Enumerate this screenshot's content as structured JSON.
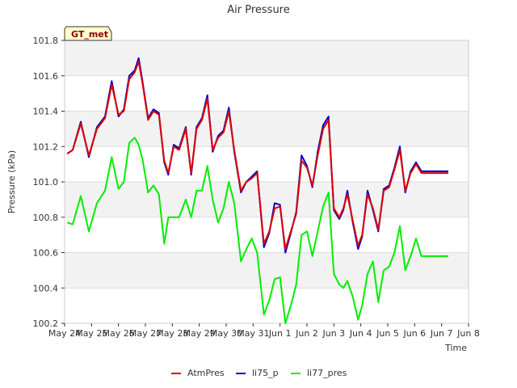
{
  "chart_data": {
    "type": "line",
    "title": "Air Pressure",
    "xlabel": "Time",
    "ylabel": "Pressure (kPa)",
    "site_label": "GT_met",
    "ylim": [
      100.2,
      101.8
    ],
    "yticks": [
      100.2,
      100.4,
      100.6,
      100.8,
      101.0,
      101.2,
      101.4,
      101.6,
      101.8
    ],
    "ytick_labels": [
      "100.2",
      "100.4",
      "100.6",
      "100.8",
      "101.0",
      "101.2",
      "101.4",
      "101.6",
      "101.8"
    ],
    "xlim": [
      0,
      15
    ],
    "xticks": [
      0,
      1,
      2,
      3,
      4,
      5,
      6,
      7,
      8,
      9,
      10,
      11,
      12,
      13,
      14,
      15
    ],
    "xtick_labels": [
      "May 24",
      "May 25",
      "May 26",
      "May 27",
      "May 28",
      "May 29",
      "May 30",
      "May 31",
      "Jun 1",
      "Jun 2",
      "Jun 3",
      "Jun 4",
      "Jun 5",
      "Jun 6",
      "Jun 7",
      "Jun 8"
    ],
    "legend_position": "bottom-center",
    "x": [
      0.1,
      0.3,
      0.6,
      0.9,
      1.2,
      1.5,
      1.75,
      2.0,
      2.2,
      2.4,
      2.6,
      2.75,
      2.9,
      3.1,
      3.3,
      3.5,
      3.7,
      3.85,
      4.05,
      4.25,
      4.5,
      4.7,
      4.9,
      5.1,
      5.3,
      5.5,
      5.7,
      5.9,
      6.1,
      6.3,
      6.55,
      6.75,
      6.95,
      7.15,
      7.4,
      7.6,
      7.8,
      8.0,
      8.2,
      8.4,
      8.6,
      8.8,
      9.0,
      9.2,
      9.4,
      9.6,
      9.8,
      10.0,
      10.2,
      10.35,
      10.5,
      10.7,
      10.9,
      11.05,
      11.25,
      11.45,
      11.65,
      11.85,
      12.05,
      12.25,
      12.45,
      12.65,
      12.85,
      13.05,
      13.25,
      13.45,
      13.65,
      13.85,
      14.05,
      14.25
    ],
    "series": [
      {
        "name": "AtmPres",
        "color": "#dd0000",
        "values": [
          101.16,
          101.18,
          101.33,
          101.15,
          101.3,
          101.36,
          101.55,
          101.38,
          101.4,
          101.58,
          101.62,
          101.68,
          101.55,
          101.35,
          101.4,
          101.38,
          101.12,
          101.05,
          101.2,
          101.18,
          101.3,
          101.05,
          101.3,
          101.35,
          101.47,
          101.18,
          101.25,
          101.28,
          101.4,
          101.18,
          100.95,
          101.0,
          101.02,
          101.05,
          100.65,
          100.72,
          100.85,
          100.86,
          100.62,
          100.72,
          100.82,
          101.12,
          101.08,
          100.98,
          101.15,
          101.3,
          101.35,
          100.85,
          100.8,
          100.85,
          100.93,
          100.78,
          100.64,
          100.7,
          100.93,
          100.85,
          100.73,
          100.95,
          100.97,
          101.07,
          101.18,
          100.95,
          101.05,
          101.1,
          101.05,
          101.05,
          101.05,
          101.05,
          101.05,
          101.05
        ]
      },
      {
        "name": "li75_p",
        "color": "#0000cc",
        "values": [
          101.16,
          101.18,
          101.34,
          101.14,
          101.31,
          101.37,
          101.57,
          101.37,
          101.41,
          101.6,
          101.63,
          101.7,
          101.56,
          101.36,
          101.41,
          101.39,
          101.11,
          101.04,
          101.21,
          101.19,
          101.31,
          101.04,
          101.31,
          101.36,
          101.49,
          101.17,
          101.26,
          101.29,
          101.42,
          101.17,
          100.94,
          101.0,
          101.03,
          101.06,
          100.63,
          100.71,
          100.88,
          100.87,
          100.6,
          100.71,
          100.83,
          101.15,
          101.09,
          100.97,
          101.17,
          101.32,
          101.37,
          100.84,
          100.79,
          100.84,
          100.95,
          100.77,
          100.62,
          100.69,
          100.95,
          100.84,
          100.72,
          100.96,
          100.98,
          101.08,
          101.2,
          100.94,
          101.06,
          101.11,
          101.06,
          101.06,
          101.06,
          101.06,
          101.06,
          101.06
        ]
      },
      {
        "name": "li77_pres",
        "color": "#00ee00",
        "values": [
          100.77,
          100.76,
          100.92,
          100.72,
          100.88,
          100.95,
          101.14,
          100.96,
          101.0,
          101.22,
          101.25,
          101.21,
          101.12,
          100.94,
          100.98,
          100.93,
          100.65,
          100.8,
          100.8,
          100.8,
          100.9,
          100.8,
          100.95,
          100.95,
          101.09,
          100.9,
          100.77,
          100.85,
          101.0,
          100.88,
          100.55,
          100.62,
          100.68,
          100.6,
          100.25,
          100.33,
          100.45,
          100.46,
          100.2,
          100.3,
          100.42,
          100.7,
          100.72,
          100.58,
          100.72,
          100.86,
          100.94,
          100.48,
          100.42,
          100.4,
          100.44,
          100.35,
          100.22,
          100.3,
          100.48,
          100.55,
          100.32,
          100.5,
          100.52,
          100.6,
          100.75,
          100.5,
          100.58,
          100.68,
          100.58,
          100.58,
          100.58,
          100.58,
          100.58,
          100.58
        ]
      }
    ]
  }
}
